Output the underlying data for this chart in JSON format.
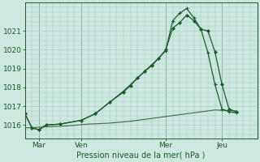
{
  "background_color": "#cce8e0",
  "grid_color": "#aacccc",
  "line_color": "#1a5c2a",
  "title": "Pression niveau de la mer( hPa )",
  "x_tick_labels": [
    "Mar",
    "Ven",
    "Mer",
    "Jeu"
  ],
  "x_tick_positions": [
    2,
    8,
    20,
    28
  ],
  "xlim": [
    0,
    33
  ],
  "ylim": [
    1015.3,
    1022.5
  ],
  "yticks": [
    1016,
    1017,
    1018,
    1019,
    1020,
    1021
  ],
  "line1_x": [
    0,
    1,
    2,
    3,
    5,
    8,
    10,
    12,
    14,
    16,
    17,
    18,
    19,
    20,
    21,
    22,
    23,
    24,
    25,
    26,
    27,
    28,
    29,
    30
  ],
  "line1_y": [
    1016.6,
    1015.85,
    1015.75,
    1016.0,
    1016.05,
    1016.25,
    1016.6,
    1017.2,
    1017.8,
    1018.5,
    1018.85,
    1019.2,
    1019.55,
    1019.95,
    1021.55,
    1021.95,
    1022.2,
    1021.7,
    1021.1,
    1019.85,
    1018.15,
    1016.85,
    1016.7,
    1016.65
  ],
  "line2_x": [
    0,
    1,
    2,
    3,
    5,
    8,
    10,
    12,
    14,
    15,
    16,
    17,
    18,
    19,
    20,
    21,
    22,
    23,
    24,
    25,
    26,
    27,
    28,
    29,
    30
  ],
  "line2_y": [
    1016.6,
    1015.85,
    1015.75,
    1016.0,
    1016.05,
    1016.25,
    1016.6,
    1017.2,
    1017.75,
    1018.1,
    1018.5,
    1018.85,
    1019.15,
    1019.55,
    1020.0,
    1021.15,
    1021.45,
    1021.85,
    1021.55,
    1021.1,
    1021.0,
    1019.9,
    1018.15,
    1016.85,
    1016.7
  ],
  "line3_x": [
    0,
    3,
    6,
    9,
    12,
    15,
    18,
    21,
    24,
    27,
    30
  ],
  "line3_y": [
    1015.85,
    1015.9,
    1015.95,
    1016.05,
    1016.1,
    1016.2,
    1016.35,
    1016.5,
    1016.65,
    1016.8,
    1016.75
  ],
  "vlines": [
    2,
    8,
    20,
    28
  ]
}
